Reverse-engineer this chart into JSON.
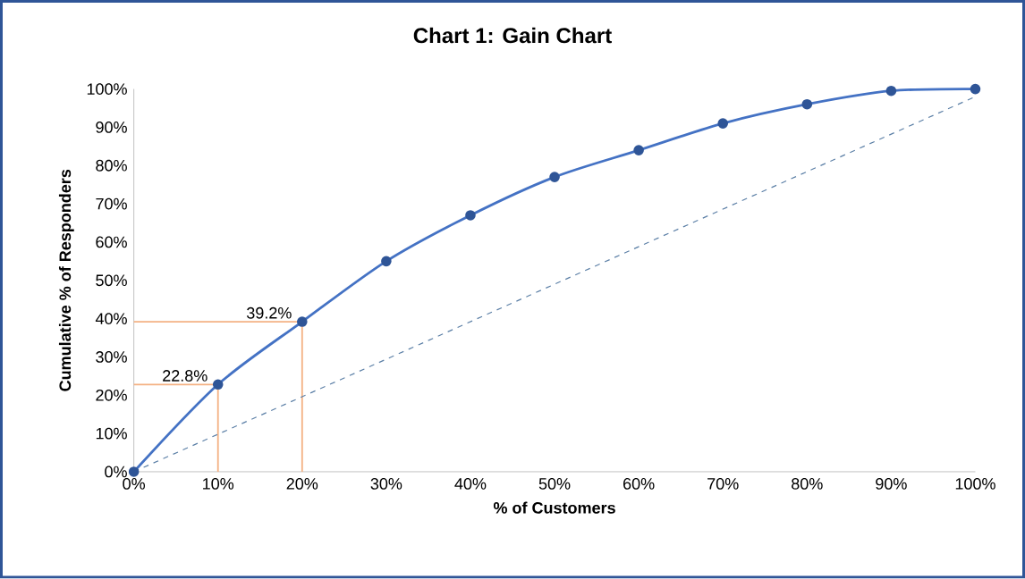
{
  "chart_data": {
    "type": "line",
    "title": "Chart 1: Gain Chart",
    "xlabel": "% of Customers",
    "ylabel": "Cumulative % of Responders",
    "xlim": [
      0,
      100
    ],
    "ylim": [
      0,
      100
    ],
    "xticks": [
      {
        "value": 0,
        "label": "0%"
      },
      {
        "value": 10,
        "label": "10%"
      },
      {
        "value": 20,
        "label": "20%"
      },
      {
        "value": 30,
        "label": "30%"
      },
      {
        "value": 40,
        "label": "40%"
      },
      {
        "value": 50,
        "label": "50%"
      },
      {
        "value": 60,
        "label": "60%"
      },
      {
        "value": 70,
        "label": "70%"
      },
      {
        "value": 80,
        "label": "80%"
      },
      {
        "value": 90,
        "label": "90%"
      },
      {
        "value": 100,
        "label": "100%"
      }
    ],
    "yticks": [
      {
        "value": 0,
        "label": "0%"
      },
      {
        "value": 10,
        "label": "10%"
      },
      {
        "value": 20,
        "label": "20%"
      },
      {
        "value": 30,
        "label": "30%"
      },
      {
        "value": 40,
        "label": "40%"
      },
      {
        "value": 50,
        "label": "50%"
      },
      {
        "value": 60,
        "label": "60%"
      },
      {
        "value": 70,
        "label": "70%"
      },
      {
        "value": 80,
        "label": "80%"
      },
      {
        "value": 90,
        "label": "90%"
      },
      {
        "value": 100,
        "label": "100%"
      }
    ],
    "series": [
      {
        "color": "#4472c4",
        "marker": "circle",
        "line_style": "solid",
        "x": [
          0,
          10,
          20,
          30,
          40,
          50,
          60,
          70,
          80,
          90,
          100
        ],
        "values": [
          0,
          22.8,
          39.2,
          55,
          67,
          77,
          84,
          91,
          96,
          99.5,
          100
        ]
      },
      {
        "color": "#5b7fa6",
        "marker": "none",
        "line_style": "dashed",
        "x": [
          0,
          100
        ],
        "values": [
          0,
          98
        ]
      },
      {
        "color": "#f4b183",
        "marker": "none",
        "line_style": "solid",
        "x": [
          0,
          10,
          10
        ],
        "values": [
          22.8,
          22.8,
          0
        ]
      },
      {
        "color": "#f4b183",
        "marker": "none",
        "line_style": "solid",
        "x": [
          0,
          20,
          20
        ],
        "values": [
          39.2,
          39.2,
          0
        ]
      }
    ],
    "annotations": [
      {
        "text": "22.8%",
        "x": 10,
        "y": 22.8
      },
      {
        "text": "39.2%",
        "x": 20,
        "y": 39.2
      }
    ]
  }
}
